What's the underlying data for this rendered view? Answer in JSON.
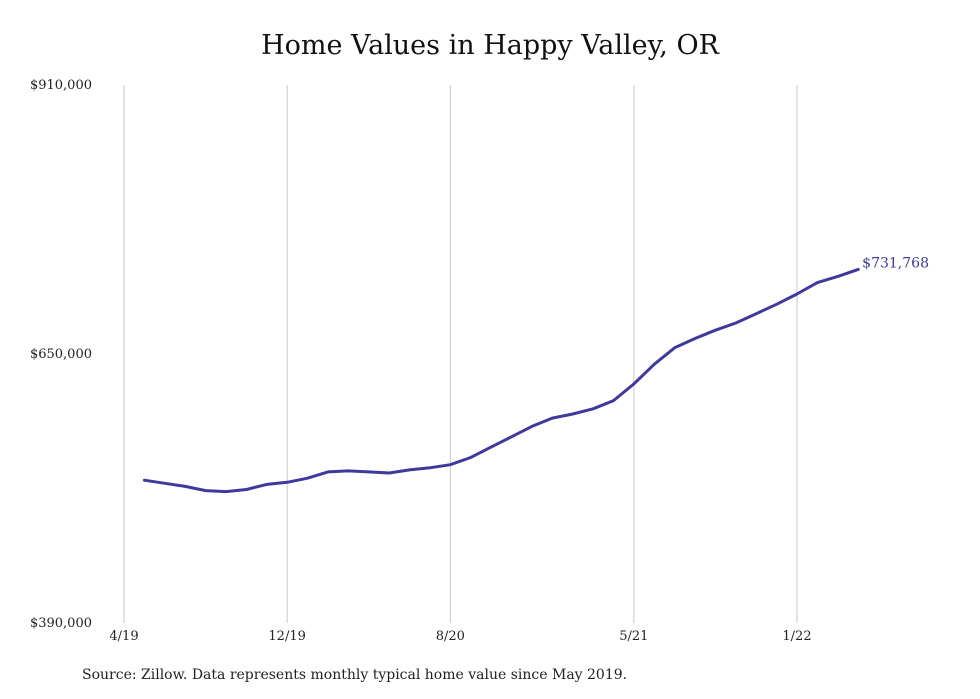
{
  "chart_data": {
    "type": "line",
    "title": "Home Values in Happy Valley, OR",
    "source": "Source: Zillow. Data represents monthly typical home value since May 2019.",
    "ylim": [
      390000,
      910000
    ],
    "y_ticks": [
      "$910,000",
      "$650,000",
      "$390,000"
    ],
    "y_tick_values": [
      910000,
      650000,
      390000
    ],
    "x_ticks": [
      "4/19",
      "12/19",
      "8/20",
      "5/21",
      "1/22"
    ],
    "x_tick_dates": [
      "2019-04",
      "2019-12",
      "2020-08",
      "2021-05",
      "2022-01"
    ],
    "grid": "vertical",
    "line_color": "#3d3a9c",
    "end_label": "$731,768",
    "series": [
      {
        "x": [
          "2019-05",
          "2019-06",
          "2019-07",
          "2019-08",
          "2019-09",
          "2019-10",
          "2019-11",
          "2019-12",
          "2020-01",
          "2020-02",
          "2020-03",
          "2020-04",
          "2020-05",
          "2020-06",
          "2020-07",
          "2020-08",
          "2020-09",
          "2020-10",
          "2020-11",
          "2020-12",
          "2021-01",
          "2021-02",
          "2021-03",
          "2021-04",
          "2021-05",
          "2021-06",
          "2021-07",
          "2021-08",
          "2021-09",
          "2021-10",
          "2021-11",
          "2021-12",
          "2022-01",
          "2022-02",
          "2022-03",
          "2022-04"
        ],
        "values": [
          528000,
          525000,
          522000,
          518000,
          517000,
          519000,
          524000,
          526000,
          530000,
          536000,
          537000,
          536000,
          535000,
          538000,
          540000,
          543000,
          550000,
          560000,
          570000,
          580000,
          588000,
          592000,
          597000,
          605000,
          621000,
          640000,
          656000,
          665000,
          673000,
          680000,
          689000,
          698000,
          708000,
          719000,
          725000,
          731768
        ]
      }
    ]
  }
}
